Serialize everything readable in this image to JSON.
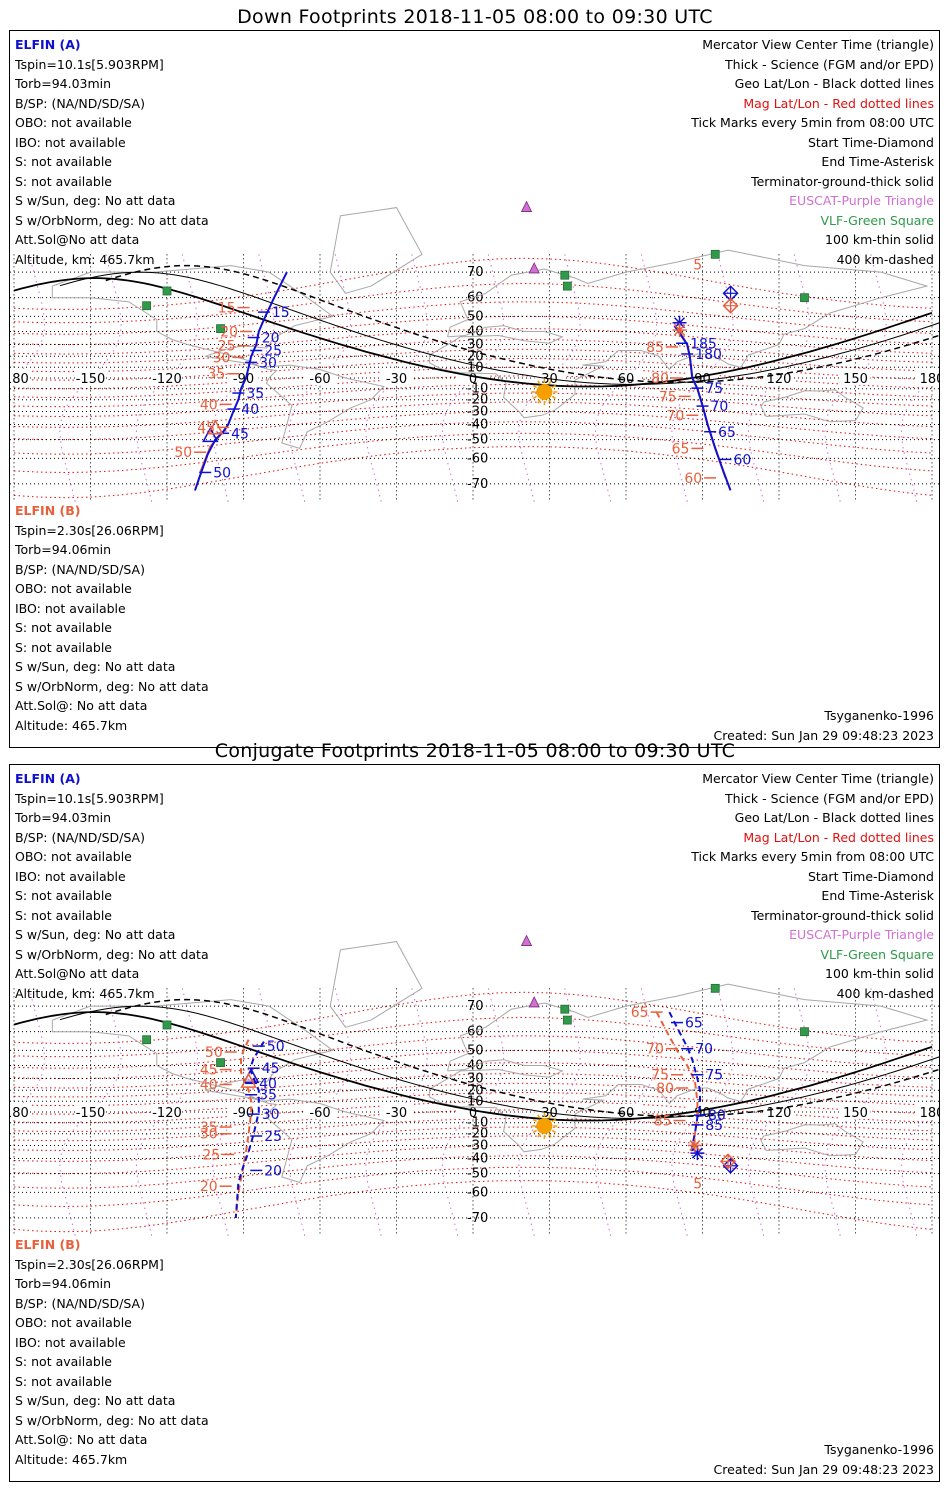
{
  "colors": {
    "elfin_a": "#1010d0",
    "elfin_b": "#e8603c",
    "mag_grid": "#e01010",
    "geo_grid": "#000000",
    "euscat": "#d070d0",
    "vlf": "#2e9a4a",
    "sun": "#f5a000"
  },
  "axes": {
    "lon_ticks": [
      "-180",
      "-150",
      "-120",
      "-90",
      "-60",
      "-30",
      "0",
      "30",
      "60",
      "90",
      "120",
      "150",
      "180"
    ],
    "lat_ticks": [
      "70",
      "60",
      "50",
      "40",
      "30",
      "20",
      "10",
      "0",
      "-10",
      "-20",
      "-30",
      "-40",
      "-50",
      "-60",
      "-70"
    ]
  },
  "legend": {
    "right": [
      "Mercator View Center Time (triangle)",
      "Thick - Science (FGM and/or EPD)",
      "Geo Lat/Lon - Black dotted lines",
      "Mag Lat/Lon - Red dotted lines",
      "Tick Marks every 5min from 08:00 UTC",
      "Start Time-Diamond",
      "End Time-Asterisk",
      "Terminator-ground-thick solid",
      "EUSCAT-Purple Triangle",
      "VLF-Green Square",
      "100 km-thin solid",
      "400 km-dashed"
    ]
  },
  "elfin_a": {
    "name": "ELFIN (A)",
    "tspin": "Tspin=10.1s[5.903RPM]",
    "torb": "Torb=94.03min",
    "bsp": "B/SP: (NA/ND/SD/SA)",
    "obo": "OBO: not available",
    "ibo": "IBO: not available",
    "s1": "S: not available",
    "s2": "S: not available",
    "wsun": "S w/Sun, deg: No att data",
    "worb": "S w/OrbNorm, deg: No att data",
    "attsol": "Att.Sol@No att data",
    "alt": "Altitude, km: 465.7km"
  },
  "elfin_b": {
    "name": "ELFIN (B)",
    "tspin": "Tspin=2.30s[26.06RPM]",
    "torb": "Torb=94.06min",
    "bsp": "B/SP: (NA/ND/SD/SA)",
    "obo": "OBO: not available",
    "ibo": "IBO: not available",
    "s1": "S: not available",
    "s2": "S: not available",
    "wsun": "S w/Sun, deg: No att data",
    "worb": "S w/OrbNorm, deg: No att data",
    "attsol": "Att.Sol@: No att data",
    "alt": "Altitude: 465.7km"
  },
  "footer": {
    "model": "Tsyganenko-1996",
    "created": "Created: Sun Jan 29 09:48:23 2023"
  },
  "panels": [
    {
      "title": "Down Footprints 2018-11-05 08:00 to 09:30 UTC",
      "a_path": [
        [
          -73,
          70
        ],
        [
          -78,
          60
        ],
        [
          -82,
          48
        ],
        [
          -84,
          40
        ],
        [
          -85,
          30
        ],
        [
          -87,
          20
        ],
        [
          -88,
          10
        ],
        [
          -89,
          0
        ],
        [
          -91,
          -10
        ],
        [
          -92,
          -20
        ],
        [
          -94,
          -30
        ],
        [
          -96,
          -40
        ],
        [
          -98,
          -45
        ],
        [
          -101,
          -50
        ],
        [
          -104,
          -58
        ],
        [
          -107,
          -67
        ],
        [
          -109,
          -72
        ]
      ],
      "a_ticks": [
        [
          "15",
          -82,
          52.5
        ],
        [
          "20",
          -86,
          35.5
        ],
        [
          "25",
          -85,
          25
        ],
        [
          "30",
          -87,
          14.5
        ],
        [
          "35",
          -92,
          -14
        ],
        [
          "40",
          -94,
          -28
        ],
        [
          "45",
          -98,
          -46
        ],
        [
          "50",
          -105,
          -66
        ]
      ],
      "b_path": [
        [
          -97,
          -43
        ],
        [
          -103,
          -54
        ],
        [
          -107,
          -66
        ]
      ],
      "b_ticks": [
        [
          "15",
          -90,
          55
        ],
        [
          "20",
          -89,
          40
        ],
        [
          "25",
          -90,
          29
        ],
        [
          "30",
          -92,
          19
        ],
        [
          "35",
          -94,
          4
        ],
        [
          "40",
          -97,
          -24
        ],
        [
          "45",
          -98,
          -42
        ],
        [
          "50",
          -107,
          -57
        ]
      ],
      "a2_path": [
        [
          79,
          44
        ],
        [
          84,
          30
        ],
        [
          85,
          20
        ],
        [
          86,
          0
        ],
        [
          88,
          -10
        ],
        [
          90,
          -25
        ],
        [
          92,
          -40
        ],
        [
          95,
          -55
        ],
        [
          98,
          -65
        ],
        [
          101,
          -72
        ]
      ],
      "a2_ticks": [
        [
          "185",
          82,
          31
        ],
        [
          "180",
          84,
          22
        ],
        [
          "75",
          88,
          -9.5
        ],
        [
          "70",
          90,
          -25.5
        ],
        [
          "65",
          93,
          -45
        ],
        [
          "60",
          99,
          -60.5
        ]
      ],
      "b2_path": [
        [
          81,
          40
        ],
        [
          84,
          30
        ],
        [
          85,
          20
        ],
        [
          86,
          0
        ],
        [
          88,
          -10
        ],
        [
          90,
          -25
        ],
        [
          92,
          -40
        ],
        [
          95,
          -55
        ],
        [
          99,
          -68
        ]
      ],
      "b2_ticks": [
        [
          "85",
          78,
          28
        ],
        [
          "80",
          80,
          0
        ],
        [
          "75",
          83,
          -17
        ],
        [
          "70",
          86,
          -33
        ],
        [
          "65",
          88,
          -55
        ],
        [
          "60",
          93,
          -68
        ]
      ],
      "a_start": [
        -103,
        -48
      ],
      "b_start": [
        -101,
        -43
      ],
      "a_start2": [
        101,
        62
      ],
      "b_start2": [
        101,
        56
      ],
      "a_end": [
        81,
        46
      ],
      "b_end": [
        81,
        41
      ],
      "start_label_a": [
        "5",
        -92,
        71.5
      ],
      "start_label_b": [
        "5",
        93,
        72
      ],
      "a2_start_label": [
        "5",
        93,
        72
      ]
    },
    {
      "title": "Conjugate Footprints 2018-11-05 08:00 to 09:30 UTC",
      "a_path": [
        [
          -82,
          55
        ],
        [
          -84,
          50
        ],
        [
          -86,
          45
        ],
        [
          -87,
          40
        ],
        [
          -87,
          35
        ],
        [
          -86,
          30
        ],
        [
          -85,
          25
        ],
        [
          -84,
          20
        ],
        [
          -84,
          0
        ],
        [
          -86,
          -20
        ],
        [
          -88,
          -35
        ],
        [
          -90,
          -45
        ],
        [
          -92,
          -55
        ],
        [
          -93,
          -70
        ]
      ],
      "a_ticks": [
        [
          "50",
          -84,
          52.5
        ],
        [
          "45",
          -86,
          38
        ],
        [
          "40",
          -87,
          26
        ],
        [
          "35",
          -87,
          16
        ],
        [
          "30",
          -86,
          -2
        ],
        [
          "25",
          -85,
          -22
        ],
        [
          "20",
          -85,
          -48
        ]
      ],
      "b_path": [
        [
          -88,
          56
        ],
        [
          -90,
          50
        ],
        [
          -91,
          45
        ],
        [
          -91,
          40
        ],
        [
          -91,
          35
        ],
        [
          -90,
          30
        ],
        [
          -88,
          20
        ],
        [
          -87,
          10
        ],
        [
          -87,
          0
        ],
        [
          -88,
          -20
        ],
        [
          -89,
          -35
        ],
        [
          -90,
          -45
        ],
        [
          -92,
          -60
        ],
        [
          -93,
          -70
        ]
      ],
      "b_ticks": [
        [
          "50",
          -95,
          49
        ],
        [
          "45",
          -97,
          37
        ],
        [
          "40",
          -97,
          25
        ],
        [
          "35",
          -97,
          -14
        ],
        [
          "30",
          -97,
          -20
        ],
        [
          "25",
          -96,
          -37
        ],
        [
          "20",
          -97,
          -57
        ]
      ],
      "a2_path": [
        [
          77,
          68
        ],
        [
          80,
          62
        ],
        [
          84,
          52
        ],
        [
          86,
          44
        ],
        [
          88,
          30
        ],
        [
          89,
          20
        ],
        [
          89,
          5
        ],
        [
          88,
          -5
        ],
        [
          87,
          -20
        ],
        [
          86,
          -30
        ],
        [
          86,
          -38
        ]
      ],
      "a2_ticks": [
        [
          "65",
          80,
          64
        ],
        [
          "70",
          84,
          51
        ],
        [
          "75",
          88,
          33
        ],
        [
          "80",
          89,
          -3
        ],
        [
          "85",
          88,
          -12
        ]
      ],
      "b2_path": [
        [
          72,
          68
        ],
        [
          76,
          60
        ],
        [
          80,
          50
        ],
        [
          84,
          40
        ],
        [
          87,
          28
        ],
        [
          88,
          10
        ],
        [
          88,
          -5
        ],
        [
          87,
          -20
        ],
        [
          86,
          -30
        ]
      ],
      "b2_ticks": [
        [
          "65",
          72,
          68
        ],
        [
          "70",
          78,
          51
        ],
        [
          "75",
          80,
          33
        ],
        [
          "80",
          82,
          22
        ],
        [
          "85",
          81,
          -8
        ]
      ],
      "a_start": [
        -87,
        31
      ],
      "b_start": [
        -88,
        27
      ],
      "a_start2": [
        101,
        -45
      ],
      "b_start2": [
        100,
        -42
      ],
      "a_end": [
        88,
        -36
      ],
      "b_end": [
        87,
        -30
      ],
      "start_label_a": [
        "5",
        97,
        -56
      ],
      "start_label_b": [
        "5",
        93,
        -56
      ],
      "a2_start_label": [
        "5",
        95,
        -55
      ]
    }
  ]
}
